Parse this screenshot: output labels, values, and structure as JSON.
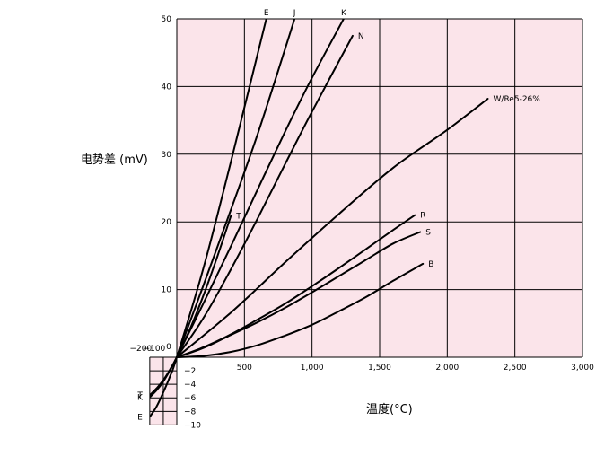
{
  "chart_data": {
    "type": "line",
    "ylabel": "电势差 (mV)",
    "xlabel": "温度(°C)",
    "xlim": [
      -200,
      3000
    ],
    "ylim": [
      -10,
      50
    ],
    "x_ticks": [
      {
        "value": -200,
        "label": "−200"
      },
      {
        "value": -100,
        "label": "−100"
      },
      {
        "value": 0,
        "label": "0"
      },
      {
        "value": 500,
        "label": "500"
      },
      {
        "value": 1000,
        "label": "1,000"
      },
      {
        "value": 1500,
        "label": "1,500"
      },
      {
        "value": 2000,
        "label": "2,000"
      },
      {
        "value": 2500,
        "label": "2,500"
      },
      {
        "value": 3000,
        "label": "3,000"
      }
    ],
    "y_ticks_positive": [
      {
        "value": 10,
        "label": "10"
      },
      {
        "value": 20,
        "label": "20"
      },
      {
        "value": 30,
        "label": "30"
      },
      {
        "value": 40,
        "label": "40"
      },
      {
        "value": 50,
        "label": "50"
      }
    ],
    "y_ticks_negative": [
      {
        "value": -2,
        "label": "−2"
      },
      {
        "value": -4,
        "label": "−4"
      },
      {
        "value": -6,
        "label": "−6"
      },
      {
        "value": -8,
        "label": "−8"
      },
      {
        "value": -10,
        "label": "−10"
      }
    ],
    "grid": true,
    "background_color": "#fbe4ea",
    "line_color": "#000000",
    "series": [
      {
        "name": "E",
        "label_at": "end",
        "points": [
          [
            -200,
            -8.8
          ],
          [
            -150,
            -7.3
          ],
          [
            -100,
            -5.2
          ],
          [
            -50,
            -2.8
          ],
          [
            0,
            0
          ],
          [
            200,
            13.4
          ],
          [
            400,
            28.9
          ],
          [
            700,
            53.1
          ]
        ]
      },
      {
        "name": "J",
        "label_at": "end",
        "points": [
          [
            0,
            0
          ],
          [
            200,
            10.8
          ],
          [
            400,
            21.8
          ],
          [
            600,
            33.1
          ],
          [
            800,
            45.5
          ],
          [
            900,
            51.9
          ]
        ]
      },
      {
        "name": "K",
        "label_at": "end",
        "points": [
          [
            -200,
            -5.9
          ],
          [
            -150,
            -4.9
          ],
          [
            -100,
            -3.6
          ],
          [
            -50,
            -1.9
          ],
          [
            0,
            0
          ],
          [
            200,
            8.1
          ],
          [
            400,
            16.4
          ],
          [
            600,
            24.9
          ],
          [
            800,
            33.3
          ],
          [
            1000,
            41.3
          ],
          [
            1250,
            50.6
          ]
        ]
      },
      {
        "name": "N",
        "label_at": "end",
        "points": [
          [
            0,
            0
          ],
          [
            200,
            5.9
          ],
          [
            400,
            13.0
          ],
          [
            600,
            20.6
          ],
          [
            800,
            28.5
          ],
          [
            1000,
            36.3
          ],
          [
            1300,
            47.5
          ]
        ]
      },
      {
        "name": "T",
        "label_at": "end",
        "points": [
          [
            -200,
            -5.6
          ],
          [
            -150,
            -4.6
          ],
          [
            -100,
            -3.4
          ],
          [
            -50,
            -1.8
          ],
          [
            0,
            0
          ],
          [
            100,
            4.3
          ],
          [
            200,
            9.3
          ],
          [
            300,
            14.9
          ],
          [
            400,
            20.9
          ]
        ]
      },
      {
        "name": "W/Re5-26%",
        "label_at": "end",
        "points": [
          [
            0,
            0
          ],
          [
            400,
            6.6
          ],
          [
            800,
            14.0
          ],
          [
            1200,
            21.2
          ],
          [
            1600,
            28.0
          ],
          [
            2000,
            33.6
          ],
          [
            2300,
            38.2
          ]
        ]
      },
      {
        "name": "R",
        "label_at": "end",
        "points": [
          [
            0,
            0
          ],
          [
            200,
            1.5
          ],
          [
            400,
            3.4
          ],
          [
            600,
            5.6
          ],
          [
            800,
            7.9
          ],
          [
            1000,
            10.5
          ],
          [
            1200,
            13.2
          ],
          [
            1400,
            16.0
          ],
          [
            1600,
            18.8
          ],
          [
            1760,
            21.0
          ]
        ]
      },
      {
        "name": "S",
        "label_at": "end",
        "points": [
          [
            0,
            0
          ],
          [
            200,
            1.4
          ],
          [
            400,
            3.3
          ],
          [
            600,
            5.2
          ],
          [
            800,
            7.3
          ],
          [
            1000,
            9.6
          ],
          [
            1200,
            12.0
          ],
          [
            1400,
            14.4
          ],
          [
            1600,
            16.8
          ],
          [
            1800,
            18.5
          ]
        ]
      },
      {
        "name": "B",
        "label_at": "end",
        "points": [
          [
            0,
            0
          ],
          [
            200,
            0.2
          ],
          [
            400,
            0.8
          ],
          [
            600,
            1.8
          ],
          [
            800,
            3.2
          ],
          [
            1000,
            4.8
          ],
          [
            1200,
            6.8
          ],
          [
            1400,
            8.9
          ],
          [
            1600,
            11.3
          ],
          [
            1820,
            13.8
          ]
        ]
      }
    ],
    "negative_end_labels": [
      "K",
      "T",
      "E"
    ]
  }
}
